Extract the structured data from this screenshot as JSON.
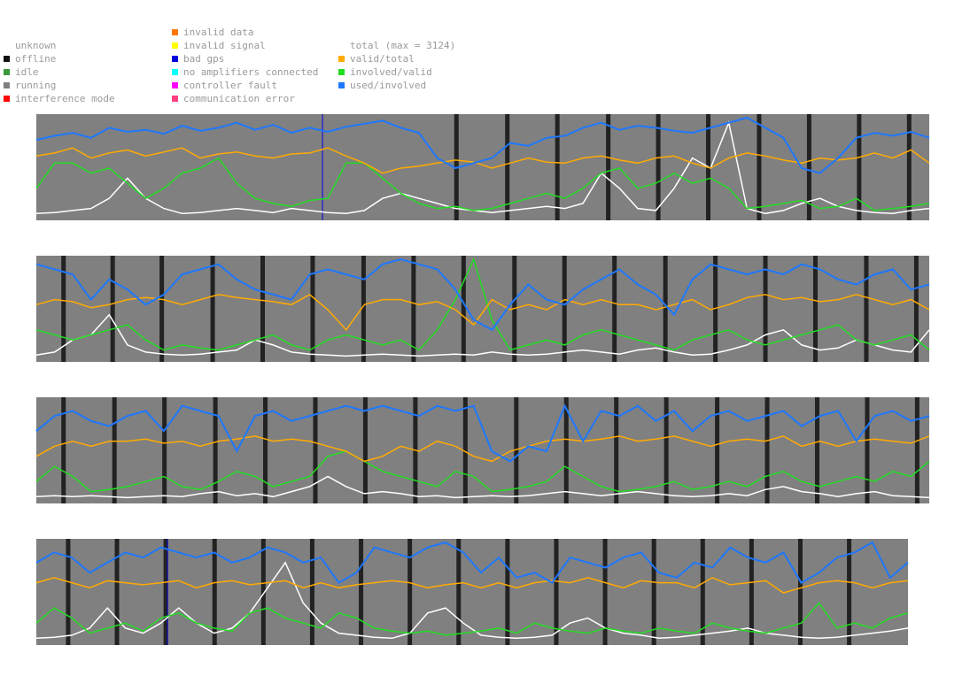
{
  "legend": {
    "status": [
      {
        "label": "unknown",
        "color": null
      },
      {
        "label": "offline",
        "color": "#111111"
      },
      {
        "label": "idle",
        "color": "#3a9a3a"
      },
      {
        "label": "running",
        "color": "#808080"
      },
      {
        "label": "interference mode",
        "color": "#ff0000"
      }
    ],
    "errors": [
      {
        "label": "invalid data",
        "color": "#ff7700"
      },
      {
        "label": "invalid signal",
        "color": "#ffff00"
      },
      {
        "label": "bad gps",
        "color": "#0000dd"
      },
      {
        "label": "no amplifiers connected",
        "color": "#00ffff"
      },
      {
        "label": "controller fault",
        "color": "#ff00ff"
      },
      {
        "label": "communication error",
        "color": "#ff4080"
      }
    ],
    "metrics": [
      {
        "label": "total (max = 3124)",
        "color": null
      },
      {
        "label": "valid/total",
        "color": "#ffaa00"
      },
      {
        "label": "involved/valid",
        "color": "#22dd22"
      },
      {
        "label": "used/involved",
        "color": "#1e78ff"
      }
    ]
  },
  "chart_data": {
    "type": "line",
    "title": "",
    "background_state": "running",
    "series_colors": {
      "total": "#ffffff",
      "valid/total": "#ffaa00",
      "involved/valid": "#22dd22",
      "used/involved": "#1e78ff"
    },
    "ylim": [
      0,
      1
    ],
    "strips": [
      {
        "x_range": [
          0,
          1
        ],
        "offline_marks": [
          0.47,
          0.527,
          0.583,
          0.64,
          0.696,
          0.752,
          0.809,
          0.865,
          0.921,
          0.977
        ],
        "bad_gps_marks": [
          0.32
        ],
        "series": {
          "used/involved": [
            0.78,
            0.82,
            0.85,
            0.8,
            0.9,
            0.86,
            0.88,
            0.84,
            0.92,
            0.87,
            0.9,
            0.95,
            0.88,
            0.93,
            0.85,
            0.9,
            0.86,
            0.91,
            0.94,
            0.97,
            0.9,
            0.85,
            0.6,
            0.5,
            0.55,
            0.6,
            0.75,
            0.72,
            0.8,
            0.82,
            0.9,
            0.95,
            0.88,
            0.92,
            0.9,
            0.87,
            0.85,
            0.9,
            0.95,
            1.0,
            0.9,
            0.8,
            0.5,
            0.45,
            0.6,
            0.8,
            0.85,
            0.82,
            0.86,
            0.8
          ],
          "valid/total": [
            0.62,
            0.65,
            0.7,
            0.6,
            0.65,
            0.68,
            0.62,
            0.66,
            0.7,
            0.6,
            0.64,
            0.66,
            0.62,
            0.6,
            0.64,
            0.65,
            0.7,
            0.62,
            0.55,
            0.45,
            0.5,
            0.52,
            0.55,
            0.58,
            0.56,
            0.5,
            0.55,
            0.6,
            0.56,
            0.55,
            0.6,
            0.62,
            0.58,
            0.55,
            0.6,
            0.62,
            0.55,
            0.5,
            0.6,
            0.65,
            0.62,
            0.58,
            0.55,
            0.6,
            0.58,
            0.6,
            0.65,
            0.6,
            0.68,
            0.55
          ],
          "involved/valid": [
            0.3,
            0.55,
            0.55,
            0.45,
            0.5,
            0.35,
            0.2,
            0.3,
            0.45,
            0.5,
            0.6,
            0.35,
            0.2,
            0.15,
            0.12,
            0.18,
            0.2,
            0.55,
            0.55,
            0.4,
            0.25,
            0.15,
            0.1,
            0.12,
            0.08,
            0.1,
            0.15,
            0.2,
            0.25,
            0.2,
            0.3,
            0.45,
            0.5,
            0.3,
            0.35,
            0.45,
            0.35,
            0.4,
            0.3,
            0.1,
            0.12,
            0.15,
            0.18,
            0.1,
            0.12,
            0.2,
            0.08,
            0.1,
            0.12,
            0.15
          ],
          "total": [
            0.05,
            0.06,
            0.08,
            0.1,
            0.2,
            0.4,
            0.2,
            0.1,
            0.05,
            0.06,
            0.08,
            0.1,
            0.08,
            0.06,
            0.1,
            0.08,
            0.06,
            0.05,
            0.08,
            0.2,
            0.25,
            0.2,
            0.15,
            0.1,
            0.08,
            0.06,
            0.08,
            0.1,
            0.12,
            0.1,
            0.15,
            0.45,
            0.3,
            0.1,
            0.08,
            0.3,
            0.6,
            0.5,
            0.95,
            0.1,
            0.05,
            0.08,
            0.15,
            0.2,
            0.12,
            0.08,
            0.06,
            0.05,
            0.08,
            0.1
          ]
        }
      },
      {
        "x_range": [
          0,
          1
        ],
        "offline_marks": [
          0.03,
          0.085,
          0.14,
          0.197,
          0.253,
          0.309,
          0.366,
          0.422,
          0.478,
          0.535,
          0.591,
          0.647,
          0.704,
          0.76,
          0.816,
          0.872,
          0.929,
          0.985
        ],
        "bad_gps_marks": [],
        "series": {
          "used/involved": [
            0.95,
            0.9,
            0.85,
            0.6,
            0.8,
            0.7,
            0.55,
            0.65,
            0.85,
            0.9,
            0.95,
            0.8,
            0.7,
            0.65,
            0.6,
            0.85,
            0.9,
            0.85,
            0.8,
            0.95,
            1.0,
            0.95,
            0.9,
            0.7,
            0.4,
            0.3,
            0.55,
            0.75,
            0.6,
            0.55,
            0.7,
            0.8,
            0.9,
            0.75,
            0.65,
            0.45,
            0.8,
            0.95,
            0.9,
            0.85,
            0.9,
            0.85,
            0.95,
            0.9,
            0.8,
            0.75,
            0.85,
            0.9,
            0.7,
            0.75
          ],
          "valid/total": [
            0.55,
            0.6,
            0.58,
            0.52,
            0.55,
            0.6,
            0.62,
            0.6,
            0.55,
            0.6,
            0.65,
            0.62,
            0.6,
            0.58,
            0.55,
            0.65,
            0.5,
            0.3,
            0.55,
            0.6,
            0.6,
            0.55,
            0.58,
            0.5,
            0.35,
            0.6,
            0.5,
            0.55,
            0.5,
            0.6,
            0.55,
            0.6,
            0.55,
            0.55,
            0.5,
            0.55,
            0.6,
            0.5,
            0.55,
            0.62,
            0.65,
            0.6,
            0.62,
            0.58,
            0.6,
            0.65,
            0.6,
            0.55,
            0.6,
            0.5
          ],
          "involved/valid": [
            0.3,
            0.25,
            0.2,
            0.25,
            0.3,
            0.35,
            0.2,
            0.1,
            0.15,
            0.12,
            0.1,
            0.15,
            0.2,
            0.25,
            0.15,
            0.1,
            0.2,
            0.25,
            0.2,
            0.15,
            0.2,
            0.1,
            0.3,
            0.6,
            1.0,
            0.4,
            0.1,
            0.15,
            0.2,
            0.15,
            0.25,
            0.3,
            0.25,
            0.2,
            0.15,
            0.1,
            0.2,
            0.25,
            0.3,
            0.2,
            0.15,
            0.2,
            0.25,
            0.3,
            0.35,
            0.2,
            0.15,
            0.2,
            0.25,
            0.1
          ],
          "total": [
            0.05,
            0.08,
            0.2,
            0.25,
            0.45,
            0.15,
            0.08,
            0.06,
            0.05,
            0.06,
            0.08,
            0.1,
            0.2,
            0.15,
            0.08,
            0.06,
            0.05,
            0.04,
            0.05,
            0.06,
            0.05,
            0.04,
            0.05,
            0.06,
            0.05,
            0.08,
            0.06,
            0.05,
            0.06,
            0.08,
            0.1,
            0.08,
            0.06,
            0.1,
            0.12,
            0.08,
            0.05,
            0.06,
            0.1,
            0.15,
            0.25,
            0.3,
            0.15,
            0.1,
            0.12,
            0.2,
            0.15,
            0.1,
            0.08,
            0.3
          ]
        }
      },
      {
        "x_range": [
          0,
          1
        ],
        "offline_marks": [
          0.03,
          0.087,
          0.143,
          0.2,
          0.256,
          0.312,
          0.368,
          0.424,
          0.48,
          0.537,
          0.593,
          0.649,
          0.705,
          0.762,
          0.818,
          0.874,
          0.93,
          0.986
        ],
        "bad_gps_marks": [],
        "series": {
          "used/involved": [
            0.7,
            0.85,
            0.9,
            0.8,
            0.75,
            0.85,
            0.9,
            0.7,
            0.95,
            0.9,
            0.85,
            0.5,
            0.85,
            0.9,
            0.8,
            0.85,
            0.9,
            0.95,
            0.9,
            0.95,
            0.9,
            0.85,
            0.95,
            0.9,
            0.95,
            0.5,
            0.4,
            0.55,
            0.5,
            0.95,
            0.6,
            0.9,
            0.85,
            0.95,
            0.8,
            0.9,
            0.7,
            0.85,
            0.9,
            0.8,
            0.85,
            0.9,
            0.75,
            0.85,
            0.9,
            0.6,
            0.85,
            0.9,
            0.8,
            0.85
          ],
          "valid/total": [
            0.45,
            0.55,
            0.6,
            0.55,
            0.6,
            0.6,
            0.62,
            0.58,
            0.6,
            0.55,
            0.6,
            0.62,
            0.65,
            0.6,
            0.62,
            0.6,
            0.55,
            0.5,
            0.4,
            0.45,
            0.55,
            0.5,
            0.6,
            0.55,
            0.45,
            0.4,
            0.5,
            0.55,
            0.6,
            0.62,
            0.6,
            0.62,
            0.65,
            0.6,
            0.62,
            0.65,
            0.6,
            0.55,
            0.6,
            0.62,
            0.6,
            0.65,
            0.55,
            0.6,
            0.55,
            0.6,
            0.62,
            0.6,
            0.58,
            0.65
          ],
          "involved/valid": [
            0.2,
            0.35,
            0.25,
            0.1,
            0.12,
            0.15,
            0.2,
            0.25,
            0.15,
            0.12,
            0.2,
            0.3,
            0.25,
            0.15,
            0.2,
            0.25,
            0.45,
            0.5,
            0.4,
            0.3,
            0.25,
            0.2,
            0.15,
            0.3,
            0.25,
            0.1,
            0.12,
            0.15,
            0.2,
            0.35,
            0.25,
            0.15,
            0.1,
            0.12,
            0.15,
            0.2,
            0.12,
            0.15,
            0.2,
            0.15,
            0.25,
            0.3,
            0.2,
            0.15,
            0.2,
            0.25,
            0.2,
            0.3,
            0.25,
            0.4
          ],
          "total": [
            0.05,
            0.06,
            0.05,
            0.06,
            0.05,
            0.04,
            0.05,
            0.06,
            0.05,
            0.08,
            0.1,
            0.06,
            0.08,
            0.05,
            0.1,
            0.15,
            0.25,
            0.15,
            0.08,
            0.1,
            0.08,
            0.05,
            0.06,
            0.04,
            0.05,
            0.06,
            0.05,
            0.06,
            0.08,
            0.1,
            0.08,
            0.06,
            0.08,
            0.1,
            0.08,
            0.06,
            0.05,
            0.06,
            0.08,
            0.06,
            0.12,
            0.15,
            0.1,
            0.08,
            0.05,
            0.08,
            0.1,
            0.06,
            0.05,
            0.04
          ]
        }
      },
      {
        "x_range": [
          0,
          0.975
        ],
        "offline_marks": [
          0.036,
          0.092,
          0.148,
          0.204,
          0.26,
          0.316,
          0.372,
          0.428,
          0.484,
          0.54,
          0.596,
          0.652,
          0.708,
          0.764,
          0.82,
          0.876,
          0.932
        ],
        "bad_gps_marks": [
          0.15
        ],
        "series": {
          "used/involved": [
            0.8,
            0.9,
            0.85,
            0.7,
            0.8,
            0.9,
            0.85,
            0.95,
            0.9,
            0.85,
            0.9,
            0.8,
            0.85,
            0.95,
            0.9,
            0.8,
            0.85,
            0.6,
            0.7,
            0.95,
            0.9,
            0.85,
            0.95,
            1.0,
            0.9,
            0.7,
            0.85,
            0.65,
            0.7,
            0.6,
            0.85,
            0.8,
            0.75,
            0.85,
            0.9,
            0.7,
            0.65,
            0.8,
            0.75,
            0.95,
            0.85,
            0.8,
            0.9,
            0.6,
            0.7,
            0.85,
            0.9,
            1.0,
            0.65,
            0.8
          ],
          "valid/total": [
            0.6,
            0.65,
            0.6,
            0.55,
            0.62,
            0.6,
            0.58,
            0.6,
            0.62,
            0.55,
            0.6,
            0.62,
            0.58,
            0.6,
            0.62,
            0.55,
            0.6,
            0.55,
            0.58,
            0.6,
            0.62,
            0.6,
            0.55,
            0.58,
            0.6,
            0.55,
            0.6,
            0.55,
            0.6,
            0.62,
            0.6,
            0.65,
            0.6,
            0.55,
            0.62,
            0.6,
            0.6,
            0.55,
            0.65,
            0.58,
            0.6,
            0.62,
            0.5,
            0.55,
            0.6,
            0.62,
            0.6,
            0.55,
            0.6,
            0.62
          ],
          "involved/valid": [
            0.2,
            0.35,
            0.25,
            0.1,
            0.15,
            0.2,
            0.12,
            0.25,
            0.3,
            0.2,
            0.15,
            0.12,
            0.3,
            0.35,
            0.25,
            0.2,
            0.15,
            0.3,
            0.25,
            0.15,
            0.12,
            0.1,
            0.12,
            0.08,
            0.1,
            0.12,
            0.15,
            0.1,
            0.2,
            0.15,
            0.12,
            0.1,
            0.15,
            0.12,
            0.1,
            0.15,
            0.12,
            0.1,
            0.2,
            0.15,
            0.12,
            0.1,
            0.15,
            0.2,
            0.4,
            0.15,
            0.2,
            0.15,
            0.25,
            0.3
          ],
          "total": [
            0.05,
            0.06,
            0.08,
            0.15,
            0.35,
            0.15,
            0.1,
            0.2,
            0.35,
            0.2,
            0.1,
            0.15,
            0.3,
            0.55,
            0.8,
            0.4,
            0.2,
            0.1,
            0.08,
            0.06,
            0.05,
            0.1,
            0.3,
            0.35,
            0.2,
            0.08,
            0.06,
            0.05,
            0.06,
            0.08,
            0.2,
            0.25,
            0.15,
            0.1,
            0.08,
            0.05,
            0.06,
            0.08,
            0.1,
            0.12,
            0.15,
            0.1,
            0.08,
            0.06,
            0.05,
            0.06,
            0.08,
            0.1,
            0.12,
            0.15
          ]
        }
      }
    ]
  }
}
